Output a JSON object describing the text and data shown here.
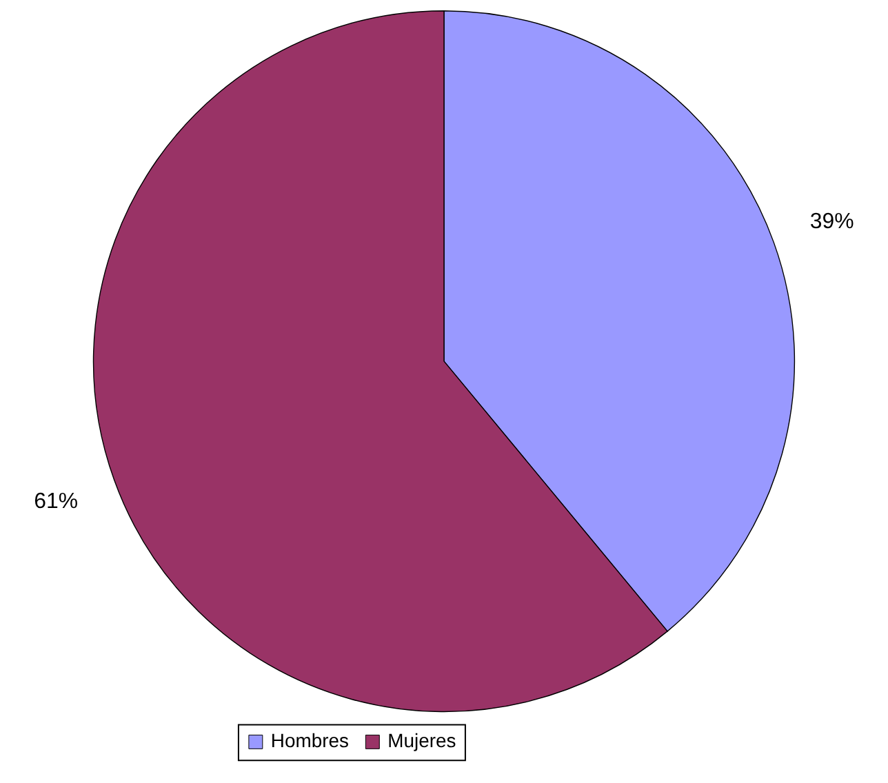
{
  "chart_data": {
    "type": "pie",
    "categories": [
      "Hombres",
      "Mujeres"
    ],
    "values": [
      39,
      61
    ],
    "colors": [
      "#9999ff",
      "#993366"
    ],
    "value_labels": [
      "39%",
      "61%"
    ],
    "legend": "bottom"
  }
}
